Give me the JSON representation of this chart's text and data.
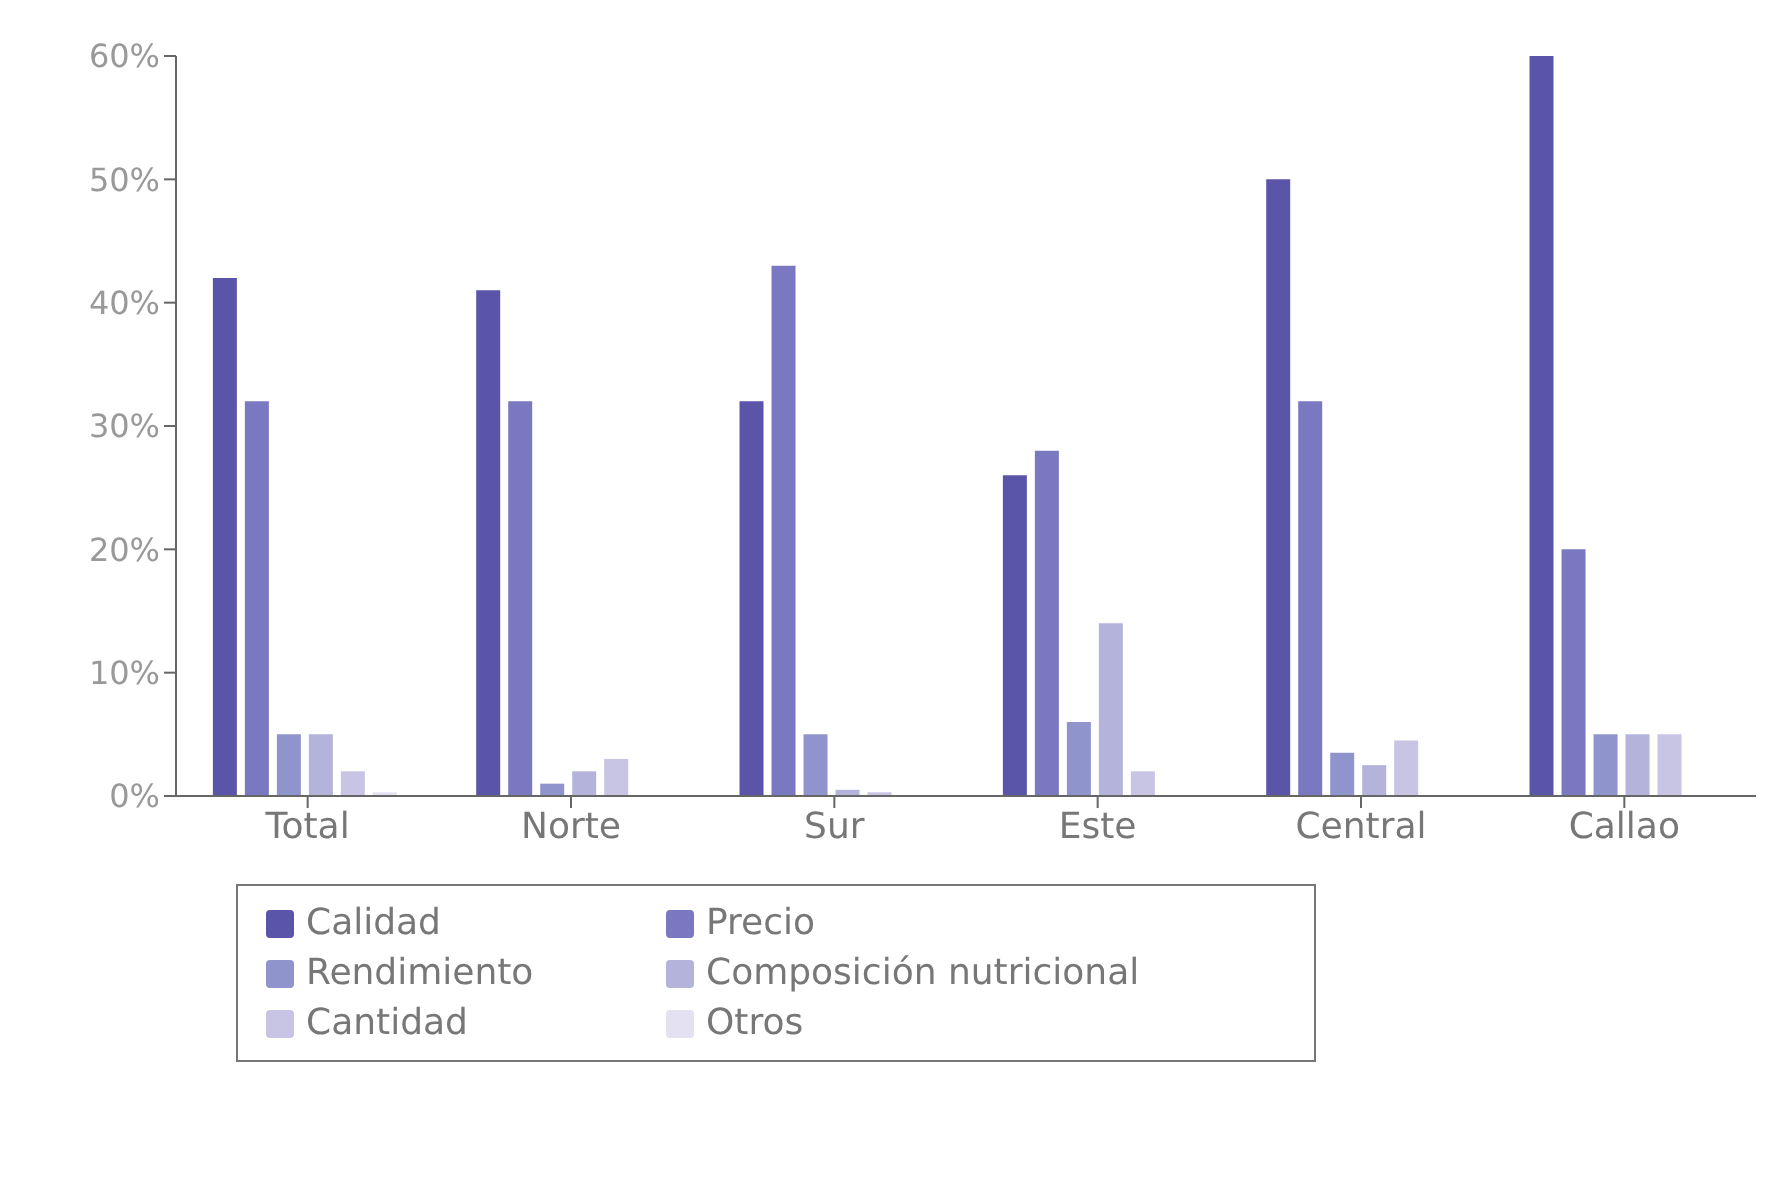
{
  "chart_data": {
    "type": "bar",
    "categories": [
      "Total",
      "Norte",
      "Sur",
      "Este",
      "Central",
      "Callao"
    ],
    "series": [
      {
        "name": "Calidad",
        "color": "#5a55a8",
        "values": [
          42,
          41,
          32,
          26,
          50,
          60
        ]
      },
      {
        "name": "Precio",
        "color": "#7a78c0",
        "values": [
          32,
          32,
          43,
          28,
          32,
          20
        ]
      },
      {
        "name": "Rendimiento",
        "color": "#8f94cc",
        "values": [
          5,
          1,
          5,
          6,
          3.5,
          5
        ]
      },
      {
        "name": "Composición nutricional",
        "color": "#b3b3dc",
        "values": [
          5,
          2,
          0.5,
          14,
          2.5,
          5
        ]
      },
      {
        "name": "Cantidad",
        "color": "#c8c4e4",
        "values": [
          2,
          3,
          0.3,
          2,
          4.5,
          5
        ]
      },
      {
        "name": "Otros",
        "color": "#e4e2f2",
        "values": [
          0.3,
          0,
          0,
          0,
          0,
          0
        ]
      }
    ],
    "ylim": [
      0,
      60
    ],
    "yticks": [
      {
        "value": 0,
        "label": "0%"
      },
      {
        "value": 10,
        "label": "10%"
      },
      {
        "value": 20,
        "label": "20%"
      },
      {
        "value": 30,
        "label": "30%"
      },
      {
        "value": 40,
        "label": "40%"
      },
      {
        "value": 50,
        "label": "50%"
      },
      {
        "value": 60,
        "label": "60%"
      }
    ],
    "grid": false,
    "legend": "bottom"
  }
}
